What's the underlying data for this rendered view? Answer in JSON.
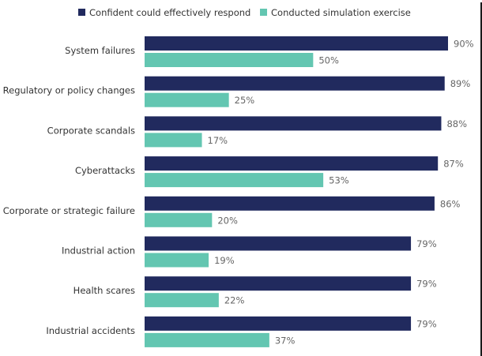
{
  "chart_data": {
    "type": "bar",
    "orientation": "horizontal",
    "title": "",
    "xlabel": "",
    "ylabel": "",
    "xlim": [
      0,
      100
    ],
    "grid": false,
    "legend_position": "top",
    "value_suffix": "%",
    "categories": [
      "System failures",
      "Regulatory or policy changes",
      "Corporate scandals",
      "Cyberattacks",
      "Corporate or strategic failure",
      "Industrial action",
      "Health scares",
      "Industrial accidents"
    ],
    "series": [
      {
        "name": "Confident could effectively respond",
        "color": "#212a5e",
        "values": [
          90,
          89,
          88,
          87,
          86,
          79,
          79,
          79
        ]
      },
      {
        "name": "Conducted simulation exercise",
        "color": "#63c6b1",
        "values": [
          50,
          25,
          17,
          53,
          20,
          19,
          22,
          37
        ]
      }
    ]
  }
}
